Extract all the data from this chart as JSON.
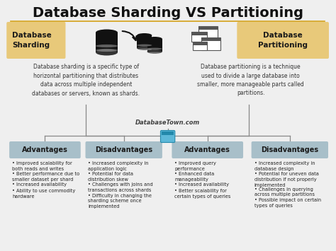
{
  "title": "Database Sharding VS Partitioning",
  "bg_color": "#efefef",
  "title_color": "#111111",
  "title_fontsize": 14,
  "header_box_color": "#e8c97a",
  "section_box_color": "#a8bfc9",
  "watermark": "DatabaseTown.com",
  "sharding_label": "Database\nSharding",
  "partitioning_label": "Database\nPartitioning",
  "sharding_desc": "Database sharding is a specific type of\nhorizontal partitioning that distributes\ndata across multiple independent\ndatabases or servers, known as shards.",
  "partitioning_desc": "Database partitioning is a technique\nused to divide a large database into\nsmaller, more manageable parts called\npartitions.",
  "columns": [
    {
      "title": "Advantages",
      "items": [
        "Improved scalability for\nboth reads and writes",
        "Better performance due to\nsmaller dataset per shard",
        "Increased availability",
        "Ability to use commodity\nhardware"
      ]
    },
    {
      "title": "Disadvantages",
      "items": [
        "Increased complexity in\napplication logic",
        "Potential for data\ndistribution skew",
        "Challenges with joins and\ntransactions across shards",
        "Difficulty in changing the\nsharding scheme once\nimplemented"
      ]
    },
    {
      "title": "Advantages",
      "items": [
        "Improved query\nperformance",
        "Enhanced data\nmanageability",
        "Increased availability",
        "Better scalability for\ncertain types of queries"
      ]
    },
    {
      "title": "Disadvantages",
      "items": [
        "Increased complexity in\ndatabase design",
        "Potential for uneven data\ndistribution if not properly\nimplemented",
        "Challenges in querying\nacross multiple partitions",
        "Possible impact on certain\ntypes of queries"
      ]
    }
  ]
}
